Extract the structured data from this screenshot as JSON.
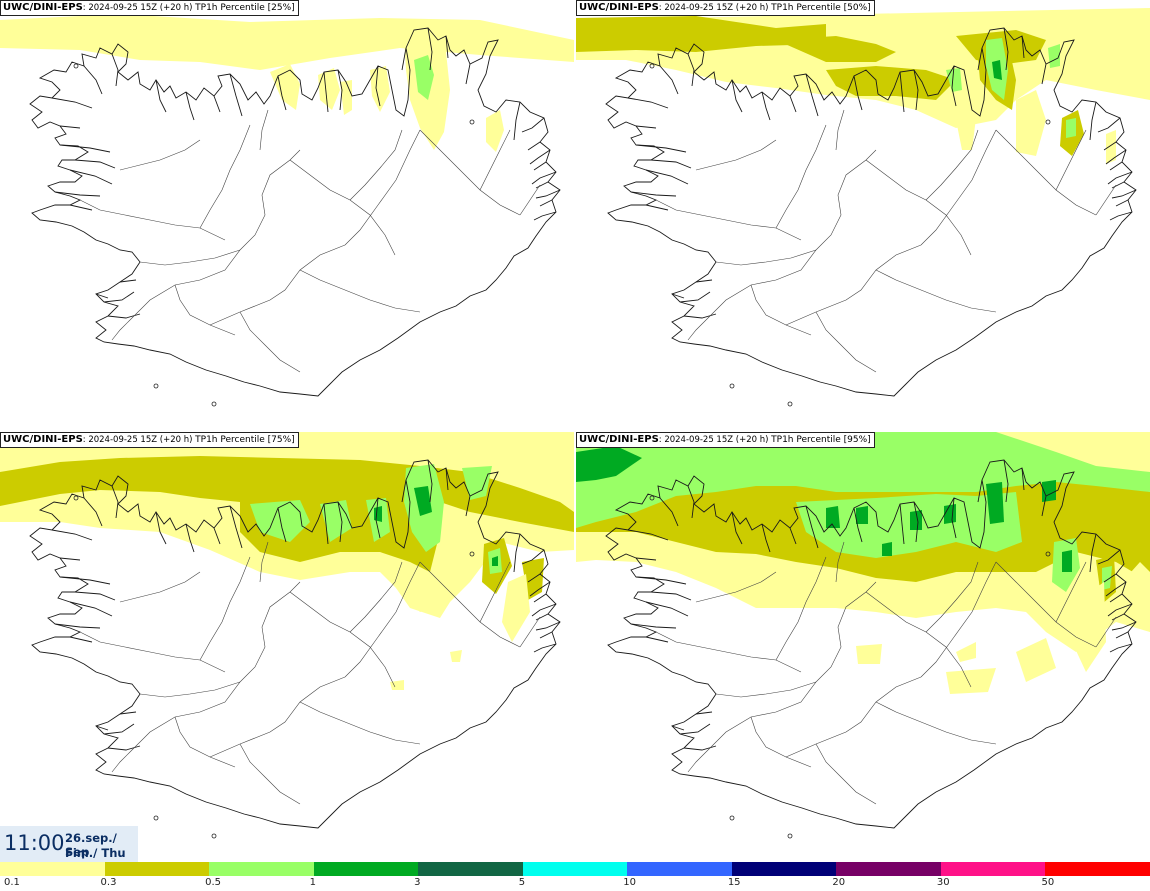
{
  "panels": [
    {
      "model": "UWC/DINI-EPS",
      "meta": ": 2024-09-25 15Z (+20 h) ",
      "field": "TP1h Percentile [25%]"
    },
    {
      "model": "UWC/DINI-EPS",
      "meta": ": 2024-09-25 15Z (+20 h) ",
      "field": "TP1h Percentile [50%]"
    },
    {
      "model": "UWC/DINI-EPS",
      "meta": ": 2024-09-25 15Z (+20 h) ",
      "field": "TP1h Percentile [75%]"
    },
    {
      "model": "UWC/DINI-EPS",
      "meta": ": 2024-09-25 15Z (+20 h) ",
      "field": "TP1h Percentile [95%]"
    }
  ],
  "valid_time": {
    "clock": "11:00",
    "date_line1": "26.sep./ Sep",
    "date_line2": "Fim./ Thu"
  },
  "legend": {
    "colors": [
      "#ffff99",
      "#cccc00",
      "#99ff66",
      "#00aa22",
      "#116644",
      "#00ffee",
      "#3366ff",
      "#000077",
      "#770066",
      "#ff1188",
      "#ff0000"
    ],
    "ticks": [
      "0.1",
      "0.3",
      "0.5",
      "1",
      "3",
      "5",
      "10",
      "15",
      "20",
      "30",
      "50"
    ]
  }
}
